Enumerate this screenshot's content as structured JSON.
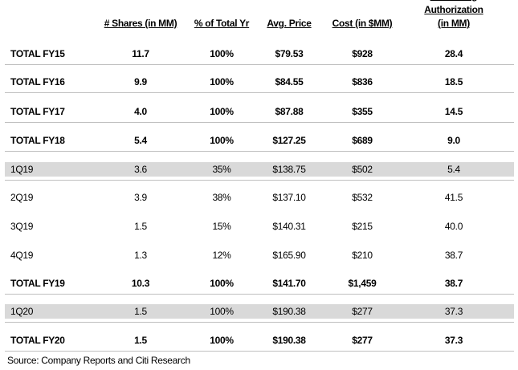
{
  "table": {
    "header": [
      "# Shares (in MM)",
      "% of Total Yr",
      "Avg. Price",
      "Cost  (in $MM)",
      "Remaining\nAuthorization (in MM)"
    ],
    "rows": [
      {
        "cells": [
          "TOTAL FY15",
          "11.7",
          "100%",
          "$79.53",
          "$928",
          "28.4"
        ],
        "bold": true,
        "shaded": false
      },
      {
        "cells": [
          "TOTAL FY16",
          "9.9",
          "100%",
          "$84.55",
          "$836",
          "18.5"
        ],
        "bold": true,
        "shaded": false
      },
      {
        "cells": [
          "TOTAL FY17",
          "4.0",
          "100%",
          "$87.88",
          "$355",
          "14.5"
        ],
        "bold": true,
        "shaded": false
      },
      {
        "cells": [
          "TOTAL FY18",
          "5.4",
          "100%",
          "$127.25",
          "$689",
          "9.0"
        ],
        "bold": true,
        "shaded": false
      },
      {
        "cells": [
          "1Q19",
          "3.6",
          "35%",
          "$138.75",
          "$502",
          "5.4"
        ],
        "bold": false,
        "shaded": true
      },
      {
        "cells": [
          "2Q19",
          "3.9",
          "38%",
          "$137.10",
          "$532",
          "41.5"
        ],
        "bold": false,
        "shaded": false
      },
      {
        "cells": [
          "3Q19",
          "1.5",
          "15%",
          "$140.31",
          "$215",
          "40.0"
        ],
        "bold": false,
        "shaded": false
      },
      {
        "cells": [
          "4Q19",
          "1.3",
          "12%",
          "$165.90",
          "$210",
          "38.7"
        ],
        "bold": false,
        "shaded": false
      },
      {
        "cells": [
          "TOTAL FY19",
          "10.3",
          "100%",
          "$141.70",
          "$1,459",
          "38.7"
        ],
        "bold": true,
        "shaded": false
      },
      {
        "cells": [
          "1Q20",
          "1.5",
          "100%",
          "$190.38",
          "$277",
          "37.3"
        ],
        "bold": false,
        "shaded": true
      },
      {
        "cells": [
          "TOTAL FY20",
          "1.5",
          "100%",
          "$190.38",
          "$277",
          "37.3"
        ],
        "bold": true,
        "shaded": false
      }
    ]
  },
  "source": "Source: Company Reports and Citi Research"
}
